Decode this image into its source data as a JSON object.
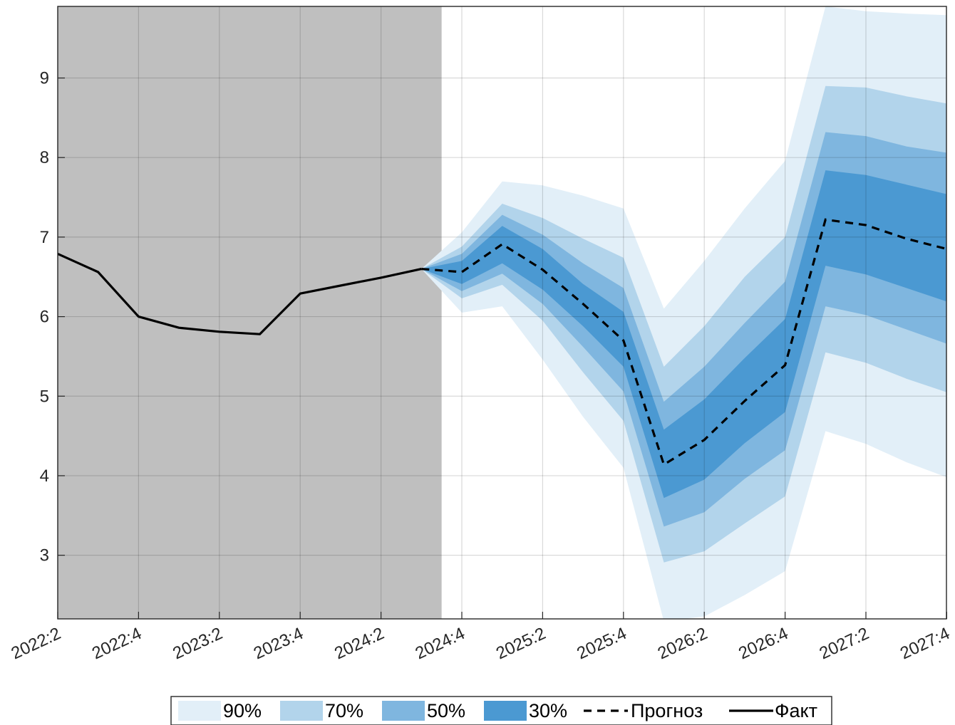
{
  "chart_data": {
    "type": "area",
    "x_ticks": [
      "2022:2",
      "2022:4",
      "2023:2",
      "2023:4",
      "2024:2",
      "2024:4",
      "2025:2",
      "2025:4",
      "2026:2",
      "2026:4",
      "2027:2",
      "2027:4"
    ],
    "ylim": [
      2.2,
      9.9
    ],
    "y_ticks": [
      3,
      4,
      5,
      6,
      7,
      8,
      9
    ],
    "grid": true,
    "history_shaded_until": "2024:3.5",
    "colors": {
      "history_shade": "#bfbfbf",
      "band90": "#e2eff8",
      "band70": "#b2d4eb",
      "band50": "#7fb6df",
      "band30": "#4b99d2",
      "line": "#000000"
    },
    "actual": {
      "name": "Факт",
      "x": [
        "2022:2",
        "2022:3",
        "2022:4",
        "2023:1",
        "2023:2",
        "2023:3",
        "2023:4",
        "2024:1",
        "2024:2",
        "2024:3"
      ],
      "values": [
        6.79,
        6.56,
        6.0,
        5.86,
        5.81,
        5.78,
        6.29,
        6.39,
        6.49,
        6.6
      ]
    },
    "forecast": {
      "name": "Прогноз",
      "x": [
        "2024:3",
        "2024:4",
        "2025:1",
        "2025:2",
        "2025:3",
        "2025:4",
        "2026:1",
        "2026:2",
        "2026:3",
        "2026:4",
        "2027:1",
        "2027:2",
        "2027:3",
        "2027:4"
      ],
      "values": [
        6.6,
        6.56,
        6.91,
        6.59,
        6.16,
        5.7,
        4.14,
        4.45,
        4.94,
        5.39,
        7.22,
        7.15,
        6.98,
        6.85
      ]
    },
    "bands": [
      {
        "name": "90%",
        "lower": [
          6.6,
          6.05,
          6.13,
          5.46,
          4.74,
          4.1,
          2.17,
          2.23,
          2.5,
          2.8,
          4.56,
          4.4,
          4.17,
          3.98
        ],
        "upper": [
          6.6,
          7.06,
          7.7,
          7.65,
          7.52,
          7.36,
          6.1,
          6.7,
          7.36,
          7.96,
          9.9,
          9.84,
          9.81,
          9.79
        ]
      },
      {
        "name": "70%",
        "lower": [
          6.6,
          6.23,
          6.4,
          5.95,
          5.3,
          4.69,
          2.91,
          3.05,
          3.4,
          3.74,
          5.55,
          5.42,
          5.22,
          5.05
        ]
      },
      {
        "name": "50%",
        "lower": [
          6.6,
          6.32,
          6.54,
          6.16,
          5.62,
          5.06,
          3.36,
          3.54,
          3.96,
          4.32,
          6.13,
          6.02,
          5.84,
          5.66
        ]
      },
      {
        "name": "30%",
        "lower": [
          6.6,
          6.41,
          6.67,
          6.34,
          5.88,
          5.37,
          3.72,
          3.95,
          4.41,
          4.8,
          6.64,
          6.53,
          6.36,
          6.19
        ]
      }
    ],
    "band_uppers": {
      "70%": [
        6.6,
        6.88,
        7.42,
        7.24,
        6.98,
        6.74,
        5.37,
        5.88,
        6.5,
        7.0,
        8.9,
        8.88,
        8.77,
        8.68
      ],
      "50%": [
        6.6,
        6.79,
        7.28,
        7.03,
        6.67,
        6.36,
        4.93,
        5.37,
        5.92,
        6.44,
        8.32,
        8.27,
        8.14,
        8.06
      ],
      "30%": [
        6.6,
        6.7,
        7.14,
        6.85,
        6.41,
        6.06,
        4.58,
        4.96,
        5.48,
        5.97,
        7.84,
        7.78,
        7.66,
        7.54
      ]
    }
  },
  "legend": {
    "items": [
      {
        "label": "90%",
        "kind": "patch",
        "color": "#e2eff8"
      },
      {
        "label": "70%",
        "kind": "patch",
        "color": "#b2d4eb"
      },
      {
        "label": "50%",
        "kind": "patch",
        "color": "#7fb6df"
      },
      {
        "label": "30%",
        "kind": "patch",
        "color": "#4b99d2"
      },
      {
        "label": "Прогноз",
        "kind": "dashed-line"
      },
      {
        "label": "Факт",
        "kind": "solid-line"
      }
    ]
  }
}
